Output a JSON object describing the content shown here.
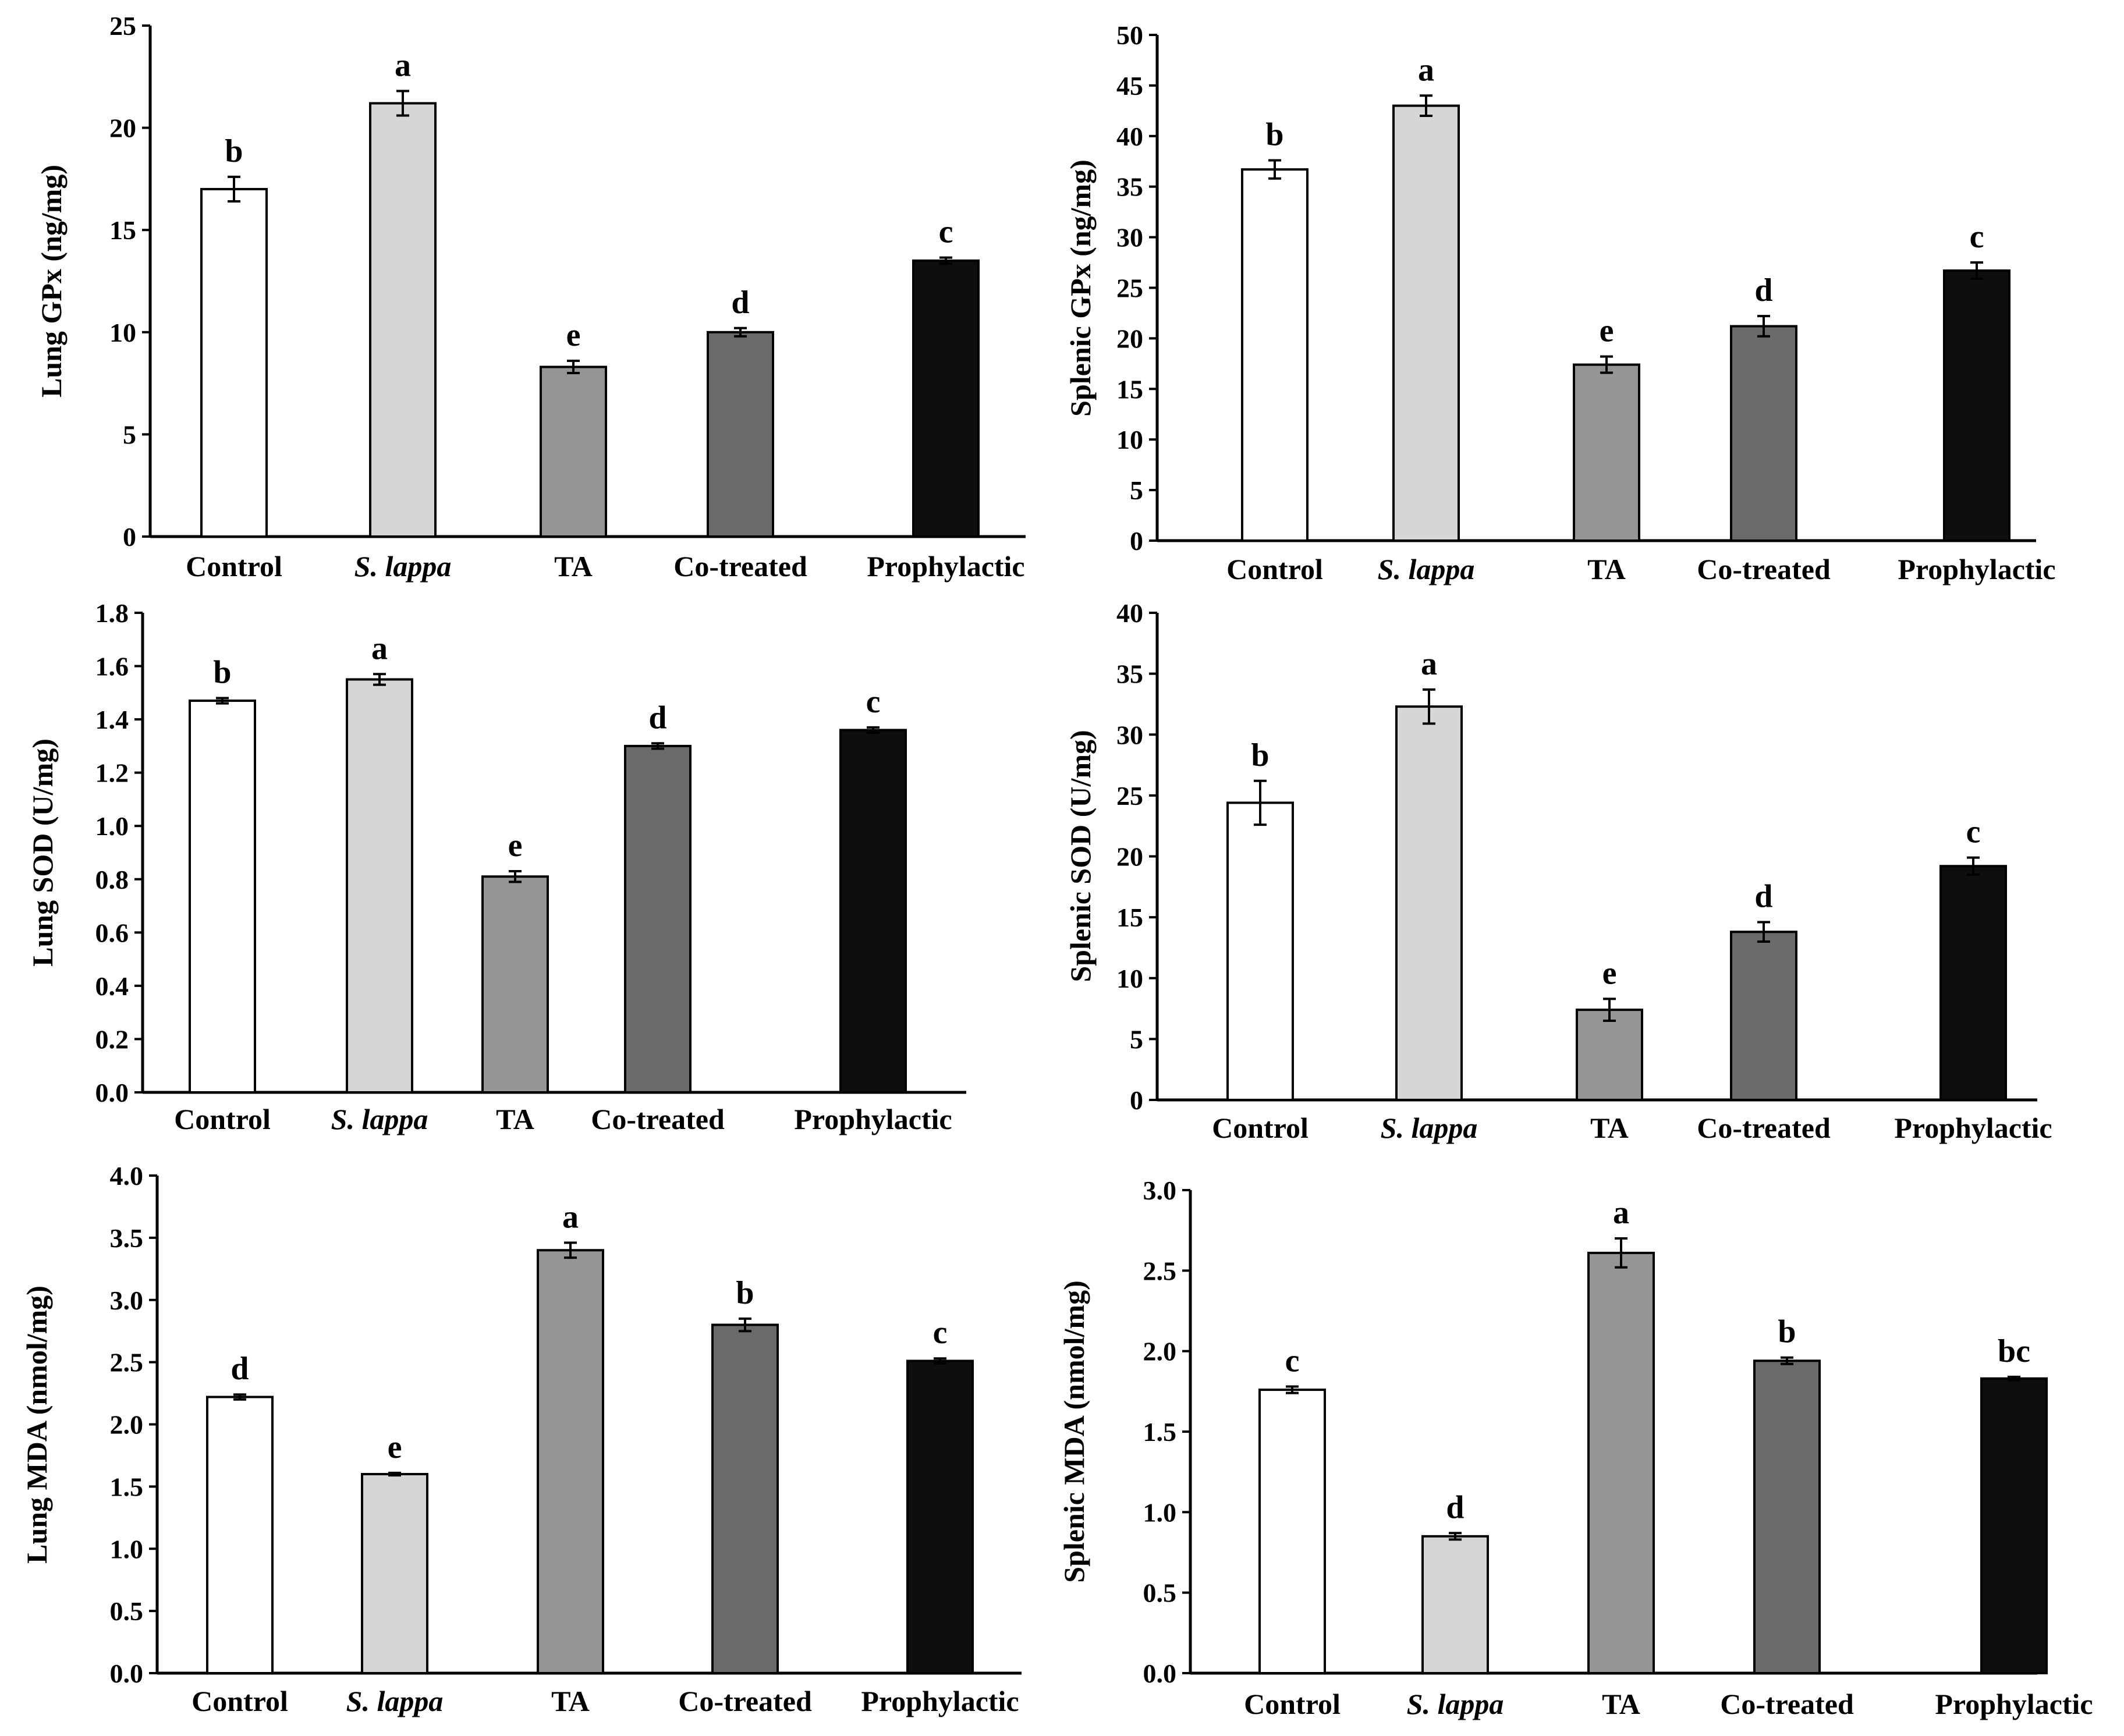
{
  "colors": {
    "bar_fills": [
      "#ffffff",
      "#d6d6d6",
      "#959595",
      "#6a6a6a",
      "#0e0e0e"
    ],
    "bar_stroke": "#000000",
    "axis": "#000000"
  },
  "chart_data": [
    {
      "id": "lung-gpx",
      "type": "bar",
      "title": "",
      "xlabel": "",
      "ylabel": "Lung GPx (ng/mg)",
      "ylim": [
        0,
        25
      ],
      "yticks": [
        "0",
        "5",
        "10",
        "15",
        "20",
        "25"
      ],
      "categories": [
        "Control",
        "S. lappa",
        "TA",
        "Co-treated",
        "Prophylactic"
      ],
      "values": [
        17.0,
        21.2,
        8.3,
        10.0,
        13.5
      ],
      "errors": [
        0.6,
        0.6,
        0.3,
        0.2,
        0.15
      ],
      "significance": [
        "b",
        "a",
        "e",
        "d",
        "c"
      ]
    },
    {
      "id": "splenic-gpx",
      "type": "bar",
      "title": "",
      "xlabel": "",
      "ylabel": "Splenic GPx (ng/mg)",
      "ylim": [
        0,
        50
      ],
      "yticks": [
        "0",
        "5",
        "10",
        "15",
        "20",
        "25",
        "30",
        "35",
        "40",
        "45",
        "50"
      ],
      "categories": [
        "Control",
        "S. lappa",
        "TA",
        "Co-treated",
        "Prophylactic"
      ],
      "values": [
        36.7,
        43.0,
        17.4,
        21.2,
        26.7
      ],
      "errors": [
        0.9,
        1.0,
        0.8,
        1.0,
        0.8
      ],
      "significance": [
        "b",
        "a",
        "e",
        "d",
        "c"
      ]
    },
    {
      "id": "lung-sod",
      "type": "bar",
      "title": "",
      "xlabel": "",
      "ylabel": "Lung SOD (U/mg)",
      "ylim": [
        0,
        1.8
      ],
      "yticks": [
        "0.0",
        "0.2",
        "0.4",
        "0.6",
        "0.8",
        "1.0",
        "1.2",
        "1.4",
        "1.6",
        "1.8"
      ],
      "categories": [
        "Control",
        "S. lappa",
        "TA",
        "Co-treated",
        "Prophylactic"
      ],
      "values": [
        1.47,
        1.55,
        0.81,
        1.3,
        1.36
      ],
      "errors": [
        0.01,
        0.02,
        0.02,
        0.01,
        0.01
      ],
      "significance": [
        "b",
        "a",
        "e",
        "d",
        "c"
      ]
    },
    {
      "id": "splenic-sod",
      "type": "bar",
      "title": "",
      "xlabel": "",
      "ylabel": "Splenic SOD (U/mg)",
      "ylim": [
        0,
        40
      ],
      "yticks": [
        "0",
        "5",
        "10",
        "15",
        "20",
        "25",
        "30",
        "35",
        "40"
      ],
      "categories": [
        "Control",
        "S. lappa",
        "TA",
        "Co-treated",
        "Prophylactic"
      ],
      "values": [
        24.4,
        32.3,
        7.4,
        13.8,
        19.2
      ],
      "errors": [
        1.8,
        1.4,
        0.9,
        0.8,
        0.7
      ],
      "significance": [
        "b",
        "a",
        "e",
        "d",
        "c"
      ]
    },
    {
      "id": "lung-mda",
      "type": "bar",
      "title": "",
      "xlabel": "",
      "ylabel": "Lung MDA (nmol/mg)",
      "ylim": [
        0,
        4.0
      ],
      "yticks": [
        "0.0",
        "0.5",
        "1.0",
        "1.5",
        "2.0",
        "2.5",
        "3.0",
        "3.5",
        "4.0"
      ],
      "categories": [
        "Control",
        "S. lappa",
        "TA",
        "Co-treated",
        "Prophylactic"
      ],
      "values": [
        2.22,
        1.6,
        3.4,
        2.8,
        2.51
      ],
      "errors": [
        0.02,
        0.01,
        0.06,
        0.05,
        0.02
      ],
      "significance": [
        "d",
        "e",
        "a",
        "b",
        "c"
      ]
    },
    {
      "id": "splenic-mda",
      "type": "bar",
      "title": "",
      "xlabel": "",
      "ylabel": "Splenic MDA (nmol/mg)",
      "ylim": [
        0,
        3.0
      ],
      "yticks": [
        "0.0",
        "0.5",
        "1.0",
        "1.5",
        "2.0",
        "2.5",
        "3.0"
      ],
      "categories": [
        "Control",
        "S. lappa",
        "TA",
        "Co-treated",
        "Prophylactic"
      ],
      "values": [
        1.76,
        0.85,
        2.61,
        1.94,
        1.83
      ],
      "errors": [
        0.02,
        0.02,
        0.09,
        0.02,
        0.01
      ],
      "significance": [
        "c",
        "d",
        "a",
        "b",
        "bc"
      ]
    }
  ]
}
